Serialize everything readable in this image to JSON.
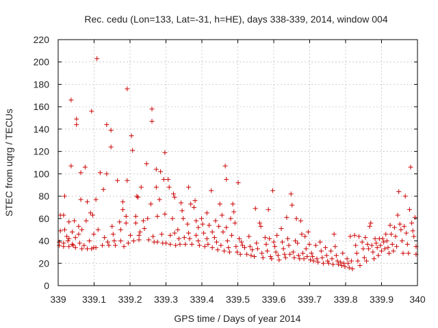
{
  "chart_data": {
    "type": "scatter",
    "title": "Rec. cedu (Lon=133, Lat=-31, h=HE), days 338-339, 2014, window 004",
    "xlabel": "GPS time / Days of year 2014",
    "ylabel": "STEC from uqrg / TECUs",
    "xlim": [
      339,
      340
    ],
    "ylim": [
      0,
      220
    ],
    "xticks": [
      "339",
      "339.1",
      "339.2",
      "339.3",
      "339.4",
      "339.5",
      "339.6",
      "339.7",
      "339.8",
      "339.9",
      "340"
    ],
    "yticks": [
      "0",
      "20",
      "40",
      "60",
      "80",
      "100",
      "120",
      "140",
      "160",
      "180",
      "200",
      "220"
    ],
    "grid": true,
    "marker": "plus",
    "color": "#cc0000",
    "points": [
      [
        339.003,
        39
      ],
      [
        339.003,
        36
      ],
      [
        339.006,
        63
      ],
      [
        339.006,
        49
      ],
      [
        339.015,
        38
      ],
      [
        339.015,
        35
      ],
      [
        339.015,
        63
      ],
      [
        339.018,
        80
      ],
      [
        339.018,
        50
      ],
      [
        339.024,
        44
      ],
      [
        339.027,
        40
      ],
      [
        339.03,
        57
      ],
      [
        339.03,
        42
      ],
      [
        339.03,
        35
      ],
      [
        339.036,
        107
      ],
      [
        339.036,
        166
      ],
      [
        339.039,
        48
      ],
      [
        339.039,
        37
      ],
      [
        339.042,
        36
      ],
      [
        339.045,
        58
      ],
      [
        339.048,
        43
      ],
      [
        339.048,
        34
      ],
      [
        339.051,
        149
      ],
      [
        339.051,
        144
      ],
      [
        339.057,
        53
      ],
      [
        339.057,
        46
      ],
      [
        339.06,
        38
      ],
      [
        339.063,
        101
      ],
      [
        339.063,
        77
      ],
      [
        339.066,
        50
      ],
      [
        339.066,
        33
      ],
      [
        339.072,
        36
      ],
      [
        339.075,
        106
      ],
      [
        339.078,
        58
      ],
      [
        339.081,
        75
      ],
      [
        339.081,
        33
      ],
      [
        339.087,
        40
      ],
      [
        339.09,
        65
      ],
      [
        339.093,
        156
      ],
      [
        339.093,
        33
      ],
      [
        339.096,
        63
      ],
      [
        339.099,
        46
      ],
      [
        339.099,
        34
      ],
      [
        339.105,
        77
      ],
      [
        339.105,
        34
      ],
      [
        339.108,
        203
      ],
      [
        339.111,
        50
      ],
      [
        339.117,
        101
      ],
      [
        339.123,
        36
      ],
      [
        339.126,
        86
      ],
      [
        339.129,
        43
      ],
      [
        339.135,
        144
      ],
      [
        339.135,
        100
      ],
      [
        339.138,
        39
      ],
      [
        339.141,
        36
      ],
      [
        339.147,
        139
      ],
      [
        339.147,
        124
      ],
      [
        339.15,
        53
      ],
      [
        339.153,
        46
      ],
      [
        339.156,
        40
      ],
      [
        339.159,
        36
      ],
      [
        339.165,
        94
      ],
      [
        339.171,
        57
      ],
      [
        339.174,
        50
      ],
      [
        339.174,
        40
      ],
      [
        339.18,
        75
      ],
      [
        339.18,
        68
      ],
      [
        339.183,
        35
      ],
      [
        339.189,
        62
      ],
      [
        339.189,
        56
      ],
      [
        339.192,
        94
      ],
      [
        339.192,
        176
      ],
      [
        339.195,
        38
      ],
      [
        339.201,
        45
      ],
      [
        339.204,
        134
      ],
      [
        339.207,
        121
      ],
      [
        339.21,
        40
      ],
      [
        339.216,
        62
      ],
      [
        339.216,
        56
      ],
      [
        339.219,
        80
      ],
      [
        339.222,
        79
      ],
      [
        339.225,
        45
      ],
      [
        339.225,
        41
      ],
      [
        339.228,
        48
      ],
      [
        339.231,
        88
      ],
      [
        339.237,
        58
      ],
      [
        339.24,
        51
      ],
      [
        339.246,
        109
      ],
      [
        339.249,
        60
      ],
      [
        339.252,
        41
      ],
      [
        339.258,
        73
      ],
      [
        339.261,
        158
      ],
      [
        339.261,
        147
      ],
      [
        339.264,
        44
      ],
      [
        339.267,
        39
      ],
      [
        339.273,
        104
      ],
      [
        339.273,
        88
      ],
      [
        339.276,
        62
      ],
      [
        339.276,
        39
      ],
      [
        339.282,
        77
      ],
      [
        339.285,
        102
      ],
      [
        339.288,
        46
      ],
      [
        339.291,
        38
      ],
      [
        339.294,
        95
      ],
      [
        339.297,
        119
      ],
      [
        339.297,
        64
      ],
      [
        339.3,
        38
      ],
      [
        339.306,
        95
      ],
      [
        339.309,
        88
      ],
      [
        339.312,
        45
      ],
      [
        339.312,
        37
      ],
      [
        339.318,
        60
      ],
      [
        339.321,
        82
      ],
      [
        339.324,
        79
      ],
      [
        339.324,
        47
      ],
      [
        339.327,
        36
      ],
      [
        339.333,
        50
      ],
      [
        339.336,
        42
      ],
      [
        339.339,
        37
      ],
      [
        339.342,
        74
      ],
      [
        339.345,
        67
      ],
      [
        339.348,
        60
      ],
      [
        339.351,
        43
      ],
      [
        339.354,
        37
      ],
      [
        339.36,
        55
      ],
      [
        339.363,
        88
      ],
      [
        339.363,
        47
      ],
      [
        339.366,
        42
      ],
      [
        339.369,
        73
      ],
      [
        339.372,
        37
      ],
      [
        339.378,
        70
      ],
      [
        339.381,
        76
      ],
      [
        339.384,
        58
      ],
      [
        339.384,
        45
      ],
      [
        339.39,
        52
      ],
      [
        339.39,
        40
      ],
      [
        339.393,
        36
      ],
      [
        339.399,
        60
      ],
      [
        339.402,
        55
      ],
      [
        339.405,
        47
      ],
      [
        339.408,
        35
      ],
      [
        339.414,
        65
      ],
      [
        339.414,
        42
      ],
      [
        339.417,
        37
      ],
      [
        339.42,
        54
      ],
      [
        339.426,
        85
      ],
      [
        339.429,
        48
      ],
      [
        339.429,
        34
      ],
      [
        339.435,
        43
      ],
      [
        339.438,
        58
      ],
      [
        339.441,
        39
      ],
      [
        339.444,
        32
      ],
      [
        339.447,
        53
      ],
      [
        339.45,
        73
      ],
      [
        339.453,
        36
      ],
      [
        339.456,
        63
      ],
      [
        339.459,
        48
      ],
      [
        339.462,
        31
      ],
      [
        339.465,
        107
      ],
      [
        339.468,
        95
      ],
      [
        339.468,
        52
      ],
      [
        339.471,
        40
      ],
      [
        339.474,
        34
      ],
      [
        339.477,
        30
      ],
      [
        339.48,
        60
      ],
      [
        339.483,
        45
      ],
      [
        339.486,
        73
      ],
      [
        339.489,
        66
      ],
      [
        339.492,
        56
      ],
      [
        339.495,
        35
      ],
      [
        339.498,
        30
      ],
      [
        339.501,
        92
      ],
      [
        339.504,
        42
      ],
      [
        339.507,
        28
      ],
      [
        339.51,
        39
      ],
      [
        339.513,
        36
      ],
      [
        339.519,
        34
      ],
      [
        339.525,
        28
      ],
      [
        339.531,
        44
      ],
      [
        339.534,
        35
      ],
      [
        339.537,
        27
      ],
      [
        339.54,
        32
      ],
      [
        339.546,
        26
      ],
      [
        339.549,
        69
      ],
      [
        339.552,
        38
      ],
      [
        339.555,
        33
      ],
      [
        339.561,
        56
      ],
      [
        339.564,
        53
      ],
      [
        339.567,
        29
      ],
      [
        339.57,
        25
      ],
      [
        339.576,
        43
      ],
      [
        339.579,
        37
      ],
      [
        339.582,
        31
      ],
      [
        339.585,
        68
      ],
      [
        339.588,
        42
      ],
      [
        339.591,
        26
      ],
      [
        339.594,
        24
      ],
      [
        339.597,
        85
      ],
      [
        339.6,
        39
      ],
      [
        339.603,
        35
      ],
      [
        339.606,
        30
      ],
      [
        339.609,
        45
      ],
      [
        339.612,
        27
      ],
      [
        339.615,
        23
      ],
      [
        339.621,
        51
      ],
      [
        339.624,
        39
      ],
      [
        339.627,
        33
      ],
      [
        339.63,
        28
      ],
      [
        339.633,
        25
      ],
      [
        339.636,
        61
      ],
      [
        339.639,
        42
      ],
      [
        339.642,
        36
      ],
      [
        339.645,
        28
      ],
      [
        339.648,
        82
      ],
      [
        339.651,
        72
      ],
      [
        339.654,
        30
      ],
      [
        339.657,
        25
      ],
      [
        339.66,
        40
      ],
      [
        339.663,
        60
      ],
      [
        339.666,
        38
      ],
      [
        339.669,
        27
      ],
      [
        339.672,
        24
      ],
      [
        339.675,
        58
      ],
      [
        339.678,
        46
      ],
      [
        339.681,
        29
      ],
      [
        339.684,
        24
      ],
      [
        339.687,
        44
      ],
      [
        339.69,
        33
      ],
      [
        339.693,
        26
      ],
      [
        339.696,
        48
      ],
      [
        339.699,
        37
      ],
      [
        339.702,
        23
      ],
      [
        339.705,
        29
      ],
      [
        339.708,
        26
      ],
      [
        339.711,
        22
      ],
      [
        339.717,
        36
      ],
      [
        339.72,
        24
      ],
      [
        339.723,
        21
      ],
      [
        339.729,
        39
      ],
      [
        339.732,
        31
      ],
      [
        339.735,
        25
      ],
      [
        339.738,
        20
      ],
      [
        339.744,
        34
      ],
      [
        339.747,
        27
      ],
      [
        339.75,
        22
      ],
      [
        339.753,
        20
      ],
      [
        339.759,
        31
      ],
      [
        339.762,
        24
      ],
      [
        339.765,
        19
      ],
      [
        339.768,
        46
      ],
      [
        339.771,
        35
      ],
      [
        339.774,
        27
      ],
      [
        339.777,
        22
      ],
      [
        339.78,
        19
      ],
      [
        339.786,
        21
      ],
      [
        339.789,
        18
      ],
      [
        339.792,
        29
      ],
      [
        339.795,
        20
      ],
      [
        339.798,
        17
      ],
      [
        339.804,
        24
      ],
      [
        339.807,
        20
      ],
      [
        339.81,
        16
      ],
      [
        339.813,
        44
      ],
      [
        339.816,
        22
      ],
      [
        339.819,
        15
      ],
      [
        339.825,
        45
      ],
      [
        339.828,
        36
      ],
      [
        339.831,
        29
      ],
      [
        339.834,
        22
      ],
      [
        339.837,
        44
      ],
      [
        339.84,
        18
      ],
      [
        339.846,
        39
      ],
      [
        339.849,
        33
      ],
      [
        339.852,
        25
      ],
      [
        339.855,
        43
      ],
      [
        339.858,
        22
      ],
      [
        339.861,
        37
      ],
      [
        339.864,
        33
      ],
      [
        339.867,
        53
      ],
      [
        339.87,
        56
      ],
      [
        339.873,
        36
      ],
      [
        339.876,
        30
      ],
      [
        339.879,
        24
      ],
      [
        339.882,
        42
      ],
      [
        339.885,
        38
      ],
      [
        339.888,
        34
      ],
      [
        339.891,
        27
      ],
      [
        339.894,
        42
      ],
      [
        339.897,
        36
      ],
      [
        339.9,
        31
      ],
      [
        339.903,
        42
      ],
      [
        339.906,
        39
      ],
      [
        339.909,
        33
      ],
      [
        339.912,
        46
      ],
      [
        339.915,
        40
      ],
      [
        339.918,
        34
      ],
      [
        339.921,
        29
      ],
      [
        339.924,
        54
      ],
      [
        339.927,
        46
      ],
      [
        339.93,
        37
      ],
      [
        339.933,
        31
      ],
      [
        339.936,
        52
      ],
      [
        339.939,
        44
      ],
      [
        339.942,
        35
      ],
      [
        339.945,
        63
      ],
      [
        339.948,
        84
      ],
      [
        339.951,
        55
      ],
      [
        339.954,
        50
      ],
      [
        339.957,
        40
      ],
      [
        339.96,
        29
      ],
      [
        339.963,
        53
      ],
      [
        339.966,
        80
      ],
      [
        339.969,
        47
      ],
      [
        339.972,
        37
      ],
      [
        339.975,
        29
      ],
      [
        339.978,
        68
      ],
      [
        339.981,
        106
      ],
      [
        339.984,
        56
      ],
      [
        339.987,
        49
      ],
      [
        339.99,
        44
      ],
      [
        339.993,
        61
      ],
      [
        339.996,
        35
      ],
      [
        339.996,
        28
      ]
    ]
  }
}
